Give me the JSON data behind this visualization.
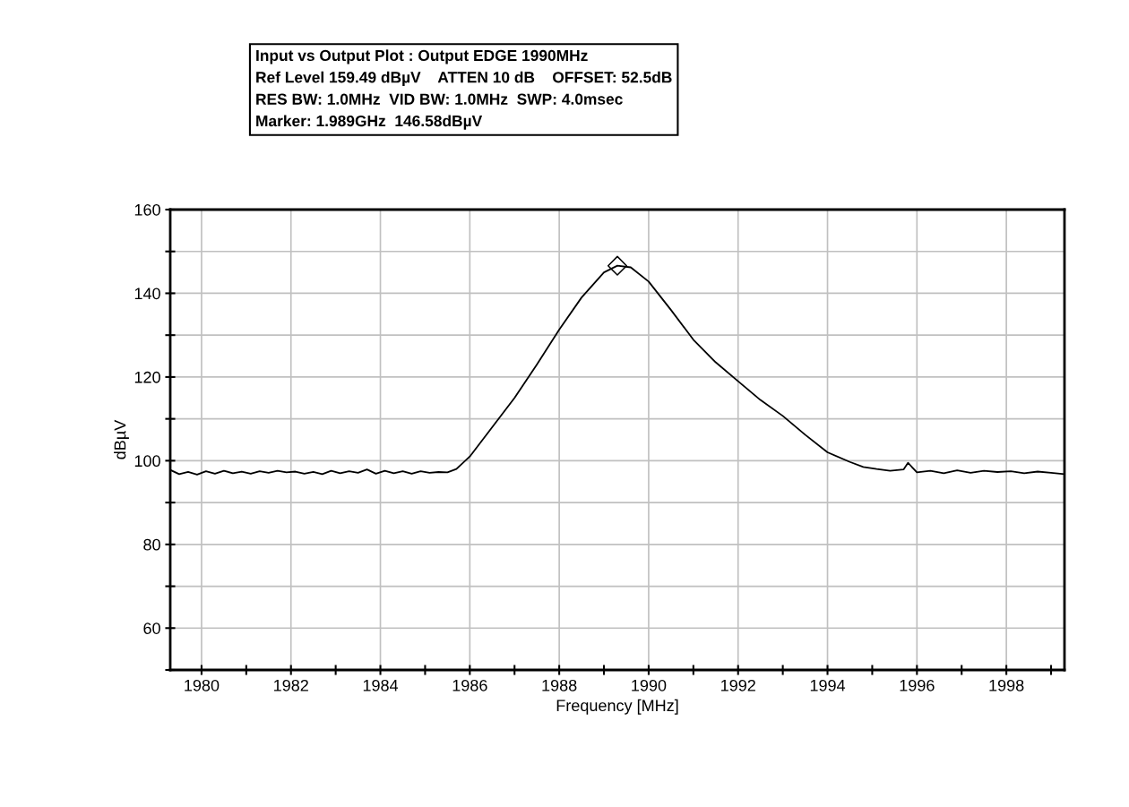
{
  "chart_data": {
    "type": "line",
    "title": "Input vs Output Plot : Output EDGE 1990MHz",
    "annotations": [
      "Ref Level 159.49 dBµV    ATTEN 10 dB    OFFSET: 52.5dB",
      "RES BW: 1.0MHz  VID BW: 1.0MHz  SWP: 4.0msec",
      "Marker: 1.989GHz  146.58dBµV"
    ],
    "xlabel": "Frequency [MHz]",
    "ylabel": "dBµV",
    "xlim": [
      1979.3,
      1999.3
    ],
    "ylim": [
      50,
      160
    ],
    "xticks": [
      1980,
      {
        "value": 1981,
        "label": null
      },
      1982,
      {
        "value": 1983,
        "label": null
      },
      1984,
      {
        "value": 1985,
        "label": null
      },
      1986,
      {
        "value": 1987,
        "label": null
      },
      1988,
      {
        "value": 1989,
        "label": null
      },
      1990,
      {
        "value": 1991,
        "label": null
      },
      1992,
      {
        "value": 1993,
        "label": null
      },
      1994,
      {
        "value": 1995,
        "label": null
      },
      1996,
      {
        "value": 1997,
        "label": null
      },
      1998,
      {
        "value": 1999,
        "label": null
      }
    ],
    "yticks": [
      {
        "value": 50,
        "label": null
      },
      60,
      {
        "value": 70,
        "label": null
      },
      80,
      {
        "value": 90,
        "label": null
      },
      100,
      {
        "value": 110,
        "label": null
      },
      120,
      {
        "value": 130,
        "label": null
      },
      140,
      {
        "value": 150,
        "label": null
      },
      160
    ],
    "grid": true,
    "legend": false,
    "series": [
      {
        "color": "#000000",
        "marker": "none",
        "x": [
          1979.3,
          1979.5,
          1979.7,
          1979.9,
          1980.1,
          1980.3,
          1980.5,
          1980.7,
          1980.9,
          1981.1,
          1981.3,
          1981.5,
          1981.7,
          1981.9,
          1982.1,
          1982.3,
          1982.5,
          1982.7,
          1982.9,
          1983.1,
          1983.3,
          1983.5,
          1983.7,
          1983.9,
          1984.1,
          1984.3,
          1984.5,
          1984.7,
          1984.9,
          1985.1,
          1985.3,
          1985.5,
          1985.7,
          1986.0,
          1986.5,
          1987.0,
          1987.5,
          1988.0,
          1988.5,
          1989.0,
          1989.3,
          1989.6,
          1990.0,
          1990.5,
          1991.0,
          1991.5,
          1992.0,
          1992.5,
          1993.0,
          1993.5,
          1994.0,
          1994.5,
          1994.8,
          1995.1,
          1995.4,
          1995.7,
          1995.8,
          1996.0,
          1996.3,
          1996.6,
          1996.9,
          1997.2,
          1997.5,
          1997.8,
          1998.1,
          1998.4,
          1998.7,
          1999.0,
          1999.3
        ],
        "values": [
          97.8,
          96.8,
          97.3,
          96.7,
          97.5,
          96.9,
          97.6,
          97.0,
          97.4,
          96.9,
          97.5,
          97.1,
          97.6,
          97.2,
          97.4,
          96.9,
          97.3,
          96.8,
          97.6,
          97.0,
          97.5,
          97.1,
          97.9,
          96.9,
          97.6,
          97.0,
          97.5,
          96.9,
          97.5,
          97.1,
          97.3,
          97.2,
          98.0,
          101.0,
          108.0,
          115.0,
          123.0,
          131.3,
          139.0,
          145.0,
          146.6,
          146.2,
          142.8,
          136.0,
          128.9,
          123.5,
          119.0,
          114.5,
          110.7,
          106.2,
          102.0,
          99.7,
          98.5,
          98.0,
          97.6,
          97.9,
          99.5,
          97.2,
          97.6,
          97.0,
          97.7,
          97.1,
          97.6,
          97.3,
          97.5,
          97.0,
          97.4,
          97.1,
          96.8
        ]
      },
      {
        "color": "#000000",
        "type": "scatter",
        "marker": "diamond",
        "x": [
          1989.3
        ],
        "values": [
          146.58
        ]
      }
    ]
  }
}
